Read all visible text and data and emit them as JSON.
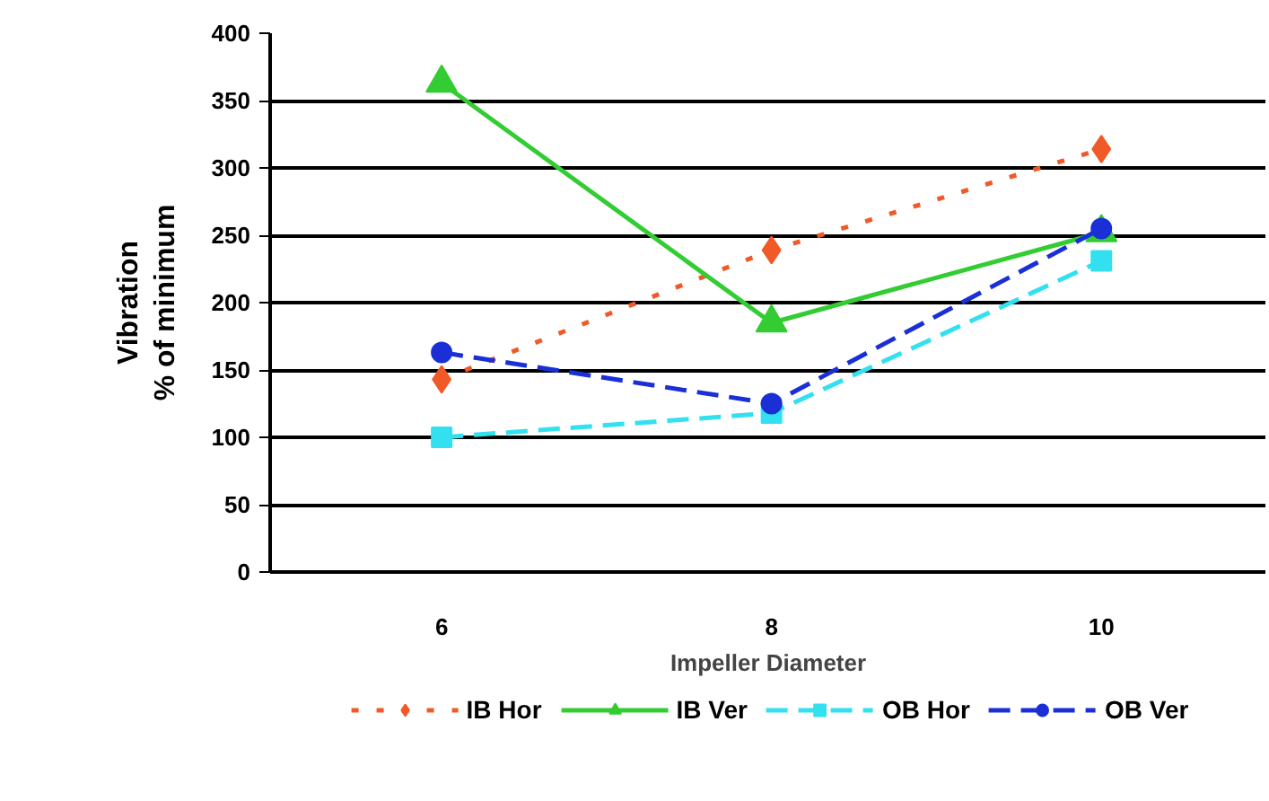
{
  "chart_data": {
    "type": "line",
    "xlabel": "Impeller Diameter",
    "ylabel": "Vibration\n% of minimum",
    "categories": [
      "6",
      "8",
      "10"
    ],
    "series": [
      {
        "name": "IB Hor",
        "color": "#f05a28",
        "values": [
          143,
          239,
          314
        ],
        "marker": "diamond",
        "line_style": "dotted"
      },
      {
        "name": "IB Ver",
        "color": "#33cc33",
        "values": [
          363,
          185,
          252
        ],
        "marker": "triangle",
        "line_style": "solid"
      },
      {
        "name": "OB Hor",
        "color": "#33e0f0",
        "values": [
          100,
          118,
          231
        ],
        "marker": "square",
        "line_style": "dashed"
      },
      {
        "name": "OB Ver",
        "color": "#1a2fd6",
        "values": [
          163,
          125,
          255
        ],
        "marker": "circle",
        "line_style": "dashed"
      }
    ],
    "ylim": [
      0,
      400
    ],
    "yticks": [
      0,
      50,
      100,
      150,
      200,
      250,
      300,
      350,
      400
    ],
    "grid": "y",
    "legend": "bottom"
  }
}
